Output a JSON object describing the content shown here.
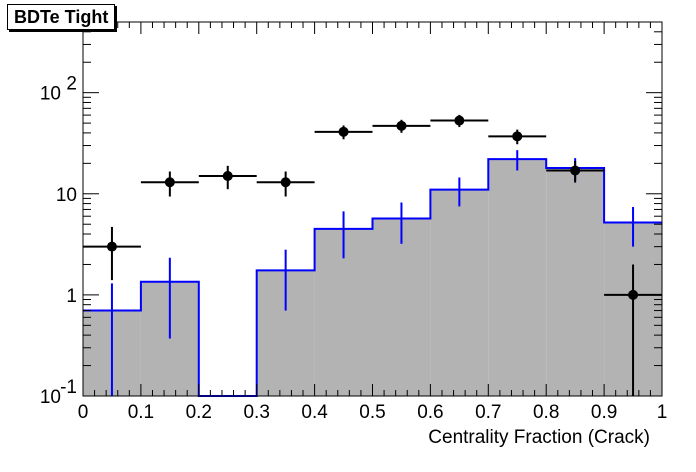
{
  "chart_data": {
    "type": "bar",
    "title": "BDTe Tight",
    "xlabel": "Centrality Fraction (Crack)",
    "ylabel": "",
    "xlim": [
      0,
      1
    ],
    "ylim": [
      0.1,
      500
    ],
    "y_scale": "log",
    "bin_edges": [
      0,
      0.1,
      0.2,
      0.3,
      0.4,
      0.5,
      0.6,
      0.7,
      0.8,
      0.9,
      1.0
    ],
    "x_ticks": [
      "0",
      "0.1",
      "0.2",
      "0.3",
      "0.4",
      "0.5",
      "0.6",
      "0.7",
      "0.8",
      "0.9",
      "1"
    ],
    "y_ticks": [
      {
        "value": 0.1,
        "base": "10",
        "exp": "-1"
      },
      {
        "value": 1,
        "base": "1",
        "exp": ""
      },
      {
        "value": 10,
        "base": "10",
        "exp": ""
      },
      {
        "value": 100,
        "base": "10",
        "exp": "2"
      }
    ],
    "series": [
      {
        "kind": "histogram",
        "values": [
          0.7,
          1.35,
          0.0,
          1.75,
          4.5,
          5.7,
          11.0,
          22.0,
          18.0,
          5.2
        ],
        "err_low": [
          0.6,
          0.98,
          0,
          1.05,
          2.2,
          2.5,
          3.5,
          5.0,
          4.5,
          2.2
        ],
        "err_high": [
          0.6,
          0.98,
          0,
          1.05,
          2.2,
          2.5,
          3.5,
          5.0,
          4.5,
          2.2
        ],
        "fill": "#b3b3b3",
        "line": "#0000ff"
      },
      {
        "kind": "points",
        "x": [
          0.05,
          0.15,
          0.25,
          0.35,
          0.45,
          0.55,
          0.65,
          0.75,
          0.85,
          0.95
        ],
        "values": [
          3.0,
          13.0,
          15.0,
          13.0,
          41.0,
          47.0,
          53.0,
          37.0,
          17.0,
          1.0
        ],
        "err_low": [
          1.6,
          3.6,
          3.9,
          3.6,
          6.4,
          6.9,
          7.3,
          6.1,
          4.1,
          0.9
        ],
        "err_high": [
          1.7,
          3.6,
          3.9,
          3.6,
          6.4,
          6.9,
          7.3,
          6.1,
          4.1,
          1.0
        ],
        "color": "#000000"
      }
    ],
    "grid": false
  }
}
